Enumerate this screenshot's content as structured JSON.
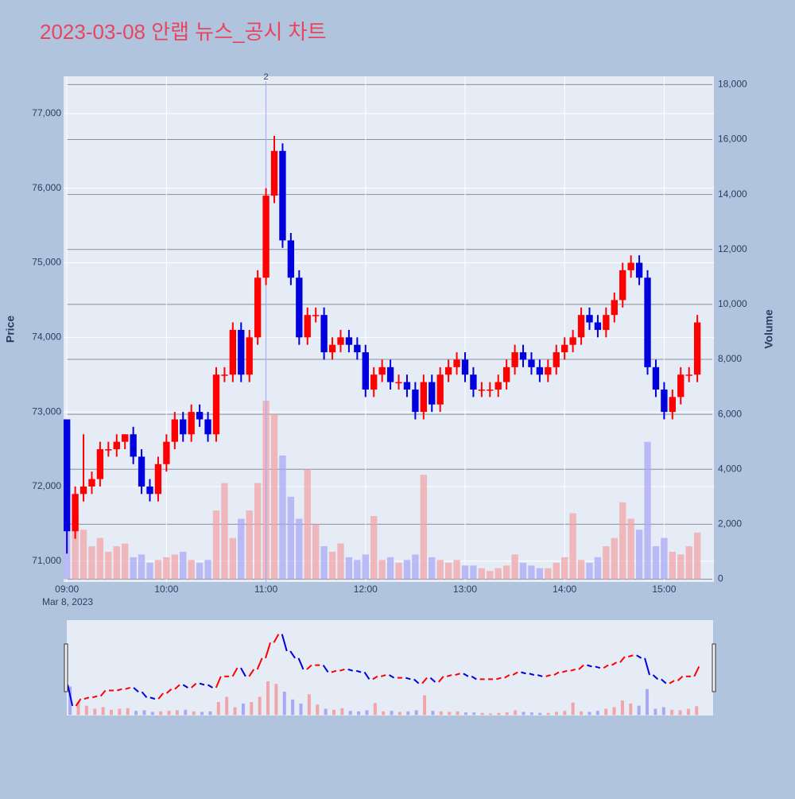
{
  "chart_data": {
    "type": "candlestick",
    "title": "2023-03-08 안랩 뉴스_공시 차트",
    "y_title": "Price",
    "y2_title": "Volume",
    "x_date_label": "Mar 8, 2023",
    "x": [
      "09:00",
      "09:05",
      "09:10",
      "09:15",
      "09:20",
      "09:25",
      "09:30",
      "09:35",
      "09:40",
      "09:45",
      "09:50",
      "09:55",
      "10:00",
      "10:05",
      "10:10",
      "10:15",
      "10:20",
      "10:25",
      "10:30",
      "10:35",
      "10:40",
      "10:45",
      "10:50",
      "10:55",
      "11:00",
      "11:05",
      "11:10",
      "11:15",
      "11:20",
      "11:25",
      "11:30",
      "11:35",
      "11:40",
      "11:45",
      "11:50",
      "11:55",
      "12:00",
      "12:05",
      "12:10",
      "12:15",
      "12:20",
      "12:25",
      "12:30",
      "12:35",
      "12:40",
      "12:45",
      "12:50",
      "12:55",
      "13:00",
      "13:05",
      "13:10",
      "13:15",
      "13:20",
      "13:25",
      "13:30",
      "13:35",
      "13:40",
      "13:45",
      "13:50",
      "13:55",
      "14:00",
      "14:05",
      "14:10",
      "14:15",
      "14:20",
      "14:25",
      "14:30",
      "14:35",
      "14:40",
      "14:45",
      "14:50",
      "14:55",
      "15:00",
      "15:05",
      "15:10",
      "15:15",
      "15:20"
    ],
    "open": [
      72900,
      71400,
      71900,
      72000,
      72100,
      72500,
      72500,
      72600,
      72700,
      72400,
      72000,
      71900,
      72300,
      72600,
      72900,
      72700,
      73000,
      72900,
      72700,
      73500,
      73500,
      74100,
      73500,
      74000,
      74800,
      75900,
      76500,
      75300,
      74800,
      74000,
      74300,
      74300,
      73800,
      73900,
      74000,
      73900,
      73800,
      73300,
      73500,
      73600,
      73400,
      73400,
      73300,
      73000,
      73400,
      73100,
      73500,
      73600,
      73700,
      73500,
      73300,
      73300,
      73300,
      73400,
      73600,
      73800,
      73700,
      73600,
      73500,
      73600,
      73800,
      73900,
      74000,
      74300,
      74200,
      74100,
      74300,
      74500,
      74900,
      75000,
      74800,
      73600,
      73300,
      73000,
      73200,
      73500,
      73500
    ],
    "high": [
      72900,
      72000,
      72700,
      72200,
      72600,
      72600,
      72700,
      72700,
      72800,
      72500,
      72100,
      72400,
      72700,
      73000,
      73000,
      73100,
      73100,
      73000,
      73600,
      73600,
      74200,
      74200,
      74100,
      74900,
      76000,
      76700,
      76600,
      75400,
      74900,
      74400,
      74400,
      74400,
      74000,
      74100,
      74100,
      74000,
      73900,
      73600,
      73700,
      73700,
      73500,
      73500,
      73400,
      73500,
      73500,
      73600,
      73700,
      73800,
      73800,
      73600,
      73400,
      73400,
      73500,
      73700,
      73900,
      73900,
      73800,
      73700,
      73700,
      73900,
      74000,
      74100,
      74400,
      74400,
      74300,
      74400,
      74600,
      75000,
      75100,
      75100,
      74900,
      73700,
      73400,
      73300,
      73600,
      73600,
      74300
    ],
    "low": [
      71100,
      71300,
      71800,
      71900,
      72000,
      72400,
      72400,
      72500,
      72300,
      71900,
      71800,
      71800,
      72200,
      72500,
      72600,
      72600,
      72800,
      72600,
      72600,
      73400,
      73400,
      73400,
      73400,
      73900,
      74700,
      75800,
      75200,
      74700,
      73900,
      73900,
      74200,
      73700,
      73700,
      73800,
      73800,
      73700,
      73200,
      73200,
      73400,
      73300,
      73300,
      73200,
      72900,
      72900,
      73000,
      73000,
      73400,
      73500,
      73400,
      73200,
      73200,
      73200,
      73200,
      73300,
      73500,
      73600,
      73500,
      73400,
      73400,
      73500,
      73700,
      73800,
      73900,
      74100,
      74000,
      74000,
      74200,
      74400,
      74800,
      74700,
      73500,
      73200,
      72900,
      72900,
      73100,
      73400,
      73400
    ],
    "close": [
      71400,
      71900,
      72000,
      72100,
      72500,
      72500,
      72600,
      72700,
      72400,
      72000,
      71900,
      72300,
      72600,
      72900,
      72700,
      73000,
      72900,
      72700,
      73500,
      73500,
      74100,
      73500,
      74000,
      74800,
      75900,
      76500,
      75300,
      74800,
      74000,
      74300,
      74300,
      73800,
      73900,
      74000,
      73900,
      73800,
      73300,
      73500,
      73600,
      73400,
      73400,
      73300,
      73000,
      73400,
      73100,
      73500,
      73600,
      73700,
      73500,
      73300,
      73300,
      73300,
      73400,
      73600,
      73800,
      73700,
      73600,
      73500,
      73600,
      73800,
      73900,
      74000,
      74300,
      74200,
      74100,
      74300,
      74500,
      74900,
      75000,
      74800,
      73600,
      73300,
      73000,
      73200,
      73500,
      73500,
      74200
    ],
    "volume": [
      5500,
      2500,
      1800,
      1200,
      1500,
      1000,
      1200,
      1300,
      800,
      900,
      600,
      700,
      800,
      900,
      1000,
      700,
      600,
      700,
      2500,
      3500,
      1500,
      2200,
      2500,
      3500,
      6500,
      6000,
      4500,
      3000,
      2200,
      4000,
      2000,
      1200,
      1000,
      1300,
      800,
      700,
      900,
      2300,
      700,
      800,
      600,
      700,
      900,
      3800,
      800,
      700,
      600,
      700,
      500,
      500,
      400,
      300,
      400,
      500,
      900,
      600,
      500,
      400,
      400,
      600,
      800,
      2400,
      700,
      600,
      800,
      1200,
      1500,
      2800,
      2200,
      1800,
      5000,
      1200,
      1500,
      1000,
      900,
      1200,
      1700
    ],
    "up_color": "#ff0000",
    "down_color": "#0000dd",
    "up_volume_color": "#f2a4a8",
    "down_volume_color": "#a8a8f4",
    "xlim": [
      "08:58",
      "15:30"
    ],
    "xticks": [
      "09:00",
      "10:00",
      "11:00",
      "12:00",
      "13:00",
      "14:00",
      "15:00"
    ],
    "ylim": [
      70720,
      77500
    ],
    "yticks": [
      {
        "value": 71000,
        "label": "71,000"
      },
      {
        "value": 72000,
        "label": "72,000"
      },
      {
        "value": 73000,
        "label": "73,000"
      },
      {
        "value": 74000,
        "label": "74,000"
      },
      {
        "value": 75000,
        "label": "75,000"
      },
      {
        "value": 76000,
        "label": "76,000"
      },
      {
        "value": 77000,
        "label": "77,000"
      }
    ],
    "y2lim": [
      -100,
      18300
    ],
    "y2ticks": [
      0,
      {
        "value": 2000,
        "label": "2,000"
      },
      {
        "value": 4000,
        "label": "4,000"
      },
      {
        "value": 6000,
        "label": "6,000"
      },
      {
        "value": 8000,
        "label": "8,000"
      },
      {
        "value": 10000,
        "label": "10,000"
      },
      {
        "value": 12000,
        "label": "12,000"
      },
      {
        "value": 14000,
        "label": "14,000"
      },
      {
        "value": 16000,
        "label": "16,000"
      },
      {
        "value": 18000,
        "label": "18,000"
      }
    ],
    "annotations": [
      {
        "x": "11:00",
        "text": "2"
      }
    ],
    "grid": true
  }
}
